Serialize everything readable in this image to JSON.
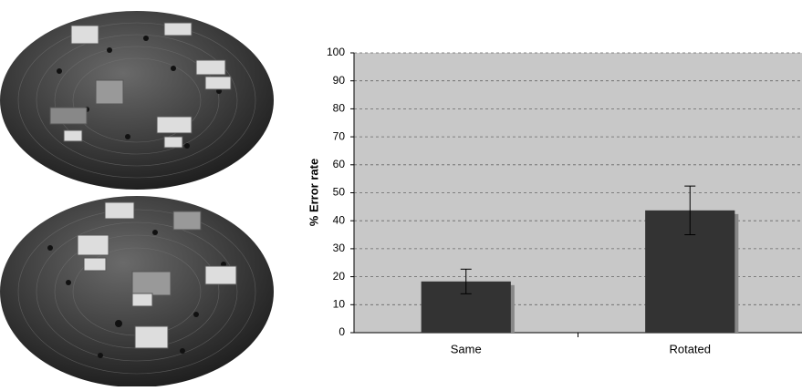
{
  "chart_data": {
    "type": "bar",
    "ylabel": "% Error rate",
    "categories": [
      "Same",
      "Rotated"
    ],
    "series": [
      {
        "color": "#333333",
        "values": [
          18.3,
          43.7
        ],
        "errors": [
          4.4,
          8.7
        ]
      }
    ],
    "ylim": [
      0,
      100
    ],
    "yticks": [
      0,
      10,
      20,
      30,
      40,
      50,
      60,
      70,
      80,
      90,
      100
    ],
    "grid": true
  }
}
